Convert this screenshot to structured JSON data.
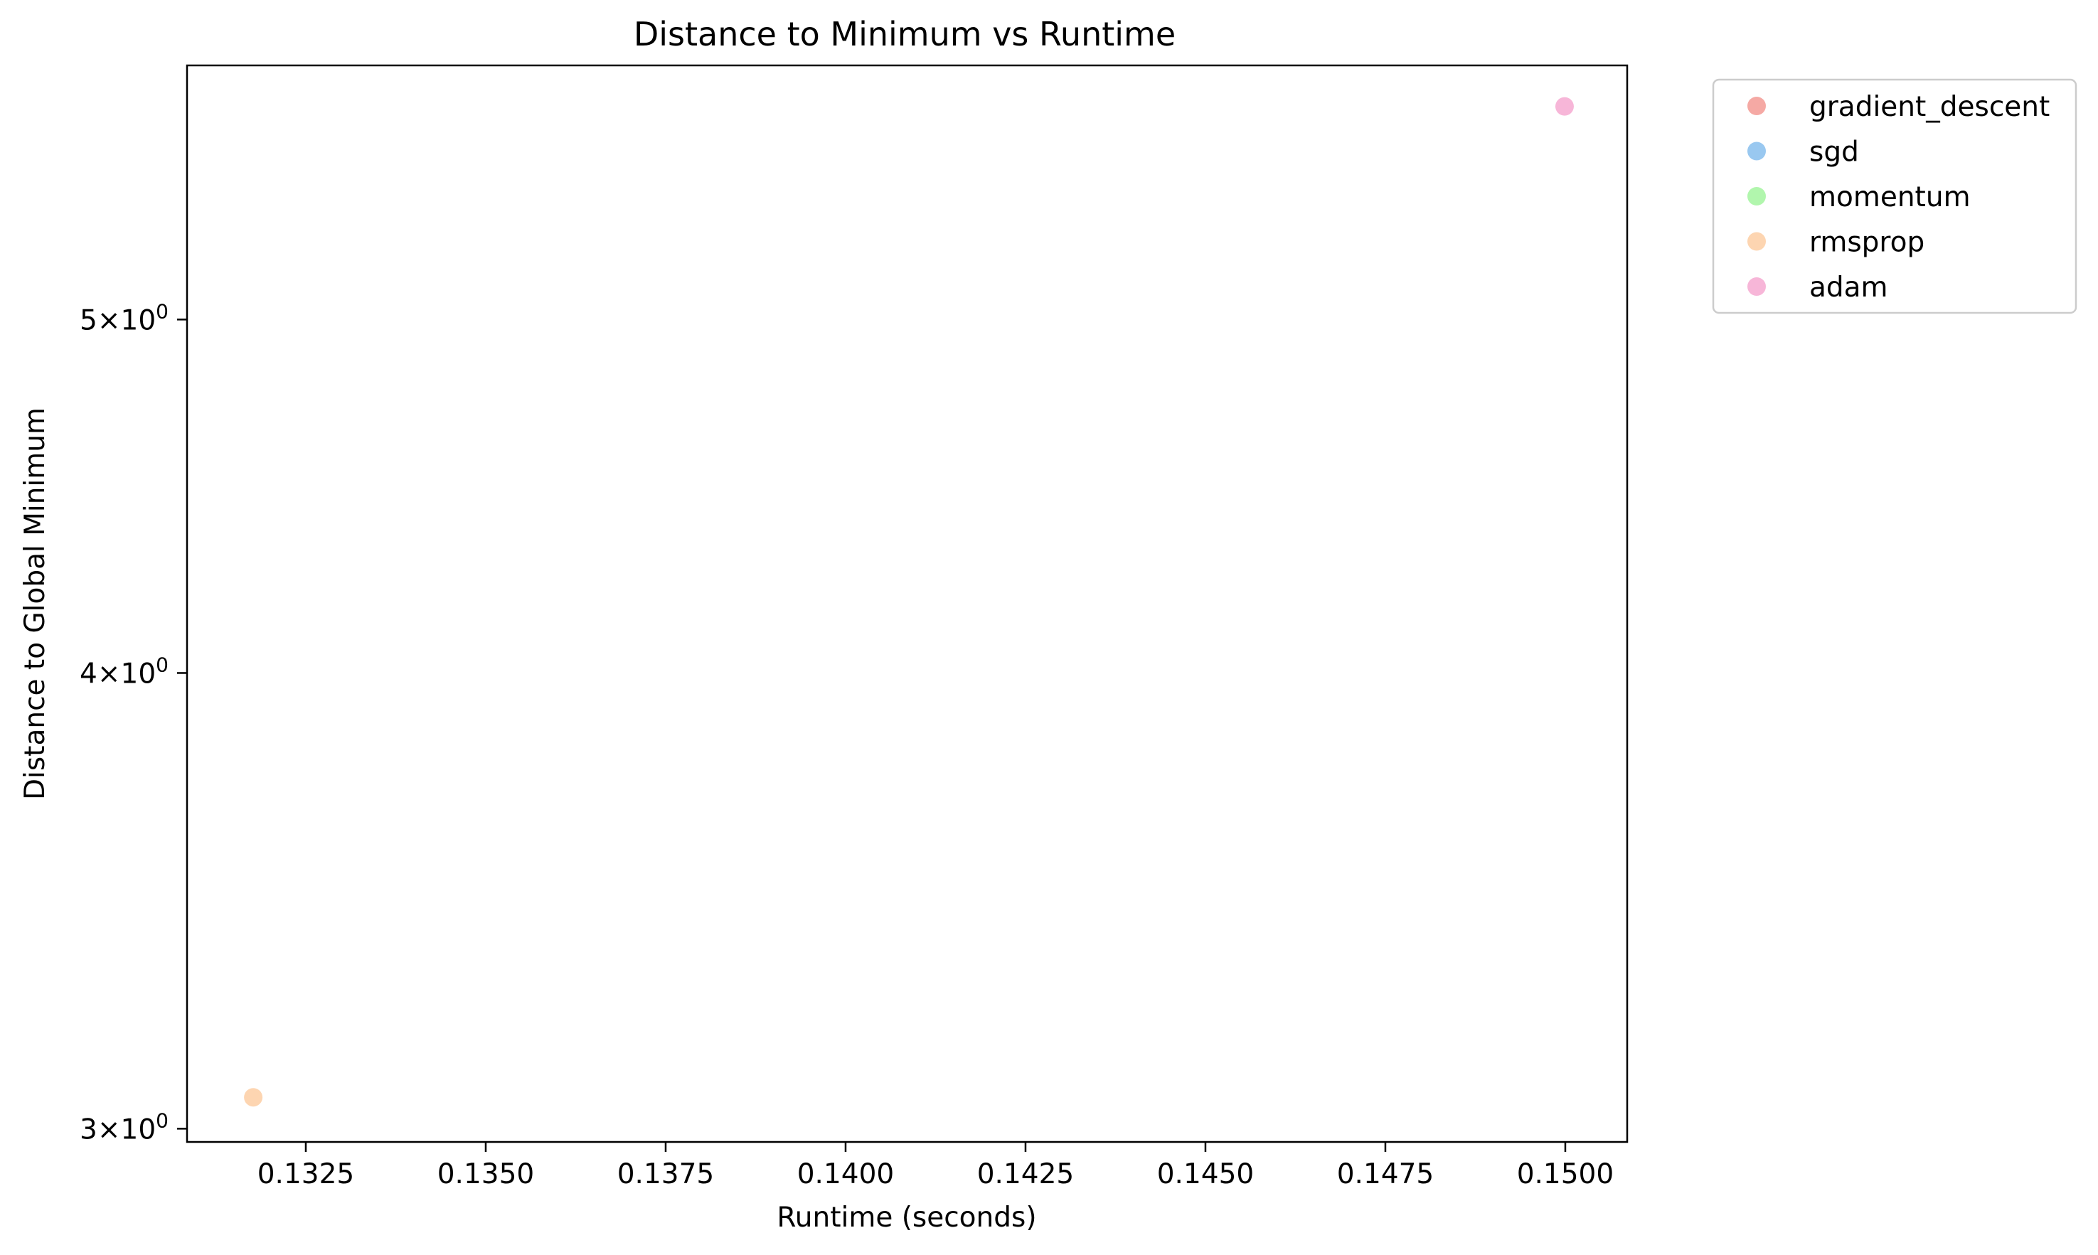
{
  "chart_data": {
    "type": "scatter",
    "title": "Distance to Minimum vs Runtime",
    "xlabel": "Runtime (seconds)",
    "ylabel": "Distance to Global Minimum",
    "y_scale": "log",
    "xlim": [
      0.13085,
      0.15086
    ],
    "ylim": [
      2.975,
      5.87
    ],
    "x_ticks": [
      {
        "value": 0.1325,
        "label": "0.1325"
      },
      {
        "value": 0.135,
        "label": "0.1350"
      },
      {
        "value": 0.1375,
        "label": "0.1375"
      },
      {
        "value": 0.14,
        "label": "0.1400"
      },
      {
        "value": 0.1425,
        "label": "0.1425"
      },
      {
        "value": 0.145,
        "label": "0.1450"
      },
      {
        "value": 0.1475,
        "label": "0.1475"
      },
      {
        "value": 0.15,
        "label": "0.1500"
      }
    ],
    "y_ticks": [
      {
        "value": 3,
        "mantissa": "3",
        "base": "10",
        "exp": "0"
      },
      {
        "value": 4,
        "mantissa": "4",
        "base": "10",
        "exp": "0"
      },
      {
        "value": 5,
        "mantissa": "5",
        "base": "10",
        "exp": "0"
      }
    ],
    "grid": false,
    "legend_position": "outside-top-right",
    "series": [
      {
        "name": "gradient_descent",
        "color": "#f4a09a",
        "points": []
      },
      {
        "name": "sgd",
        "color": "#8ec2ee",
        "points": []
      },
      {
        "name": "momentum",
        "color": "#a8f5a4",
        "points": []
      },
      {
        "name": "rmsprop",
        "color": "#fdd0a8",
        "points": [
          {
            "x": 0.13177,
            "y": 3.06
          }
        ]
      },
      {
        "name": "adam",
        "color": "#f6aed4",
        "points": [
          {
            "x": 0.14999,
            "y": 5.72
          }
        ]
      }
    ]
  }
}
